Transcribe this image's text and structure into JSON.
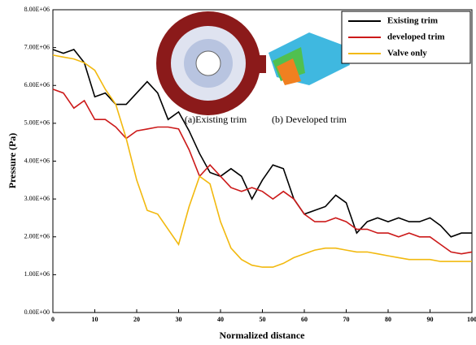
{
  "chart_data": {
    "type": "line",
    "x_label": "Normalized distance",
    "y_label": "Pressure (Pa)",
    "annotations": [
      "(a)Existing trim",
      "(b) Developed trim"
    ],
    "x": [
      0,
      2.5,
      5,
      7.5,
      10,
      12.5,
      15,
      17.5,
      20,
      22.5,
      25,
      27.5,
      30,
      32.5,
      35,
      37.5,
      40,
      42.5,
      45,
      47.5,
      50,
      52.5,
      55,
      57.5,
      60,
      62.5,
      65,
      67.5,
      70,
      72.5,
      75,
      77.5,
      80,
      82.5,
      85,
      87.5,
      90,
      92.5,
      95,
      97.5,
      100
    ],
    "series": [
      {
        "name": "Existing trim",
        "color": "#000000",
        "values": [
          6950000,
          6850000,
          6950000,
          6600000,
          5700000,
          5800000,
          5500000,
          5500000,
          5800000,
          6100000,
          5800000,
          5100000,
          5300000,
          4800000,
          4200000,
          3700000,
          3600000,
          3800000,
          3600000,
          3000000,
          3500000,
          3900000,
          3800000,
          3000000,
          2600000,
          2700000,
          2800000,
          3100000,
          2900000,
          2100000,
          2400000,
          2500000,
          2400000,
          2500000,
          2400000,
          2400000,
          2500000,
          2300000,
          2000000,
          2100000,
          2100000
        ]
      },
      {
        "name": "developed trim",
        "color": "#cc1a1a",
        "values": [
          5900000,
          5800000,
          5400000,
          5600000,
          5100000,
          5100000,
          4900000,
          4600000,
          4800000,
          4850000,
          4900000,
          4900000,
          4850000,
          4300000,
          3600000,
          3900000,
          3600000,
          3300000,
          3200000,
          3300000,
          3200000,
          3000000,
          3200000,
          3000000,
          2600000,
          2400000,
          2400000,
          2500000,
          2400000,
          2200000,
          2200000,
          2100000,
          2100000,
          2000000,
          2100000,
          2000000,
          2000000,
          1800000,
          1600000,
          1550000,
          1600000
        ]
      },
      {
        "name": "Valve only",
        "color": "#f2b90f",
        "values": [
          6800000,
          6750000,
          6700000,
          6600000,
          6400000,
          5900000,
          5500000,
          4600000,
          3500000,
          2700000,
          2600000,
          2200000,
          1800000,
          2800000,
          3600000,
          3400000,
          2400000,
          1700000,
          1400000,
          1250000,
          1200000,
          1200000,
          1300000,
          1450000,
          1550000,
          1650000,
          1700000,
          1700000,
          1650000,
          1600000,
          1600000,
          1550000,
          1500000,
          1450000,
          1400000,
          1400000,
          1400000,
          1350000,
          1350000,
          1350000,
          1350000
        ]
      }
    ],
    "xlim": [
      0,
      100
    ],
    "xticks": [
      0,
      10,
      20,
      30,
      40,
      50,
      60,
      70,
      80,
      90,
      100
    ],
    "ylim": [
      0,
      8000000
    ],
    "yticks": [
      {
        "value": 0,
        "label": "0.00E+00"
      },
      {
        "value": 1000000,
        "label": "1.00E+06"
      },
      {
        "value": 2000000,
        "label": "2.00E+06"
      },
      {
        "value": 3000000,
        "label": "3.00E+06"
      },
      {
        "value": 4000000,
        "label": "4.00E+06"
      },
      {
        "value": 5000000,
        "label": "5.00E+06"
      },
      {
        "value": 6000000,
        "label": "6.00E+06"
      },
      {
        "value": 7000000,
        "label": "7.00E+06"
      },
      {
        "value": 8000000,
        "label": "8.00E+06"
      }
    ],
    "legend_position": "upper right"
  }
}
